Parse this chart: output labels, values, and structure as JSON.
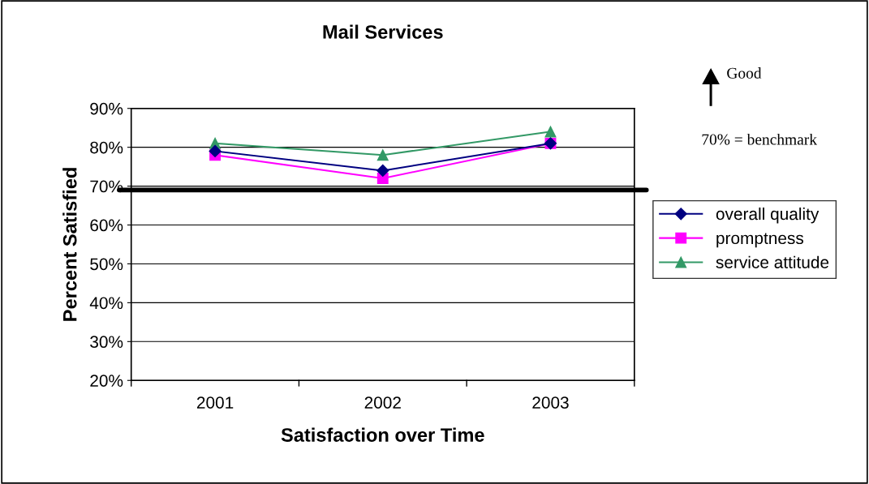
{
  "chart_data": {
    "type": "line",
    "title": "Mail Services",
    "xlabel": "Satisfaction over Time",
    "ylabel": "Percent Satisfied",
    "categories": [
      "2001",
      "2002",
      "2003"
    ],
    "series": [
      {
        "name": "overall quality",
        "color": "#000080",
        "marker": "diamond",
        "values": [
          79,
          74,
          81
        ]
      },
      {
        "name": "promptness",
        "color": "#ff00ff",
        "marker": "square",
        "values": [
          78,
          72,
          81
        ]
      },
      {
        "name": "service attitude",
        "color": "#339966",
        "marker": "triangle",
        "values": [
          81,
          78,
          84
        ]
      }
    ],
    "ylim": [
      20,
      90
    ],
    "yticks": [
      {
        "value": 20,
        "label": "20%"
      },
      {
        "value": 30,
        "label": "30%"
      },
      {
        "value": 40,
        "label": "40%"
      },
      {
        "value": 50,
        "label": "50%"
      },
      {
        "value": 60,
        "label": "60%"
      },
      {
        "value": 70,
        "label": "70%"
      },
      {
        "value": 80,
        "label": "80%"
      },
      {
        "value": 90,
        "label": "90%"
      }
    ],
    "grid": "y",
    "legend": "right",
    "ref_lines": [
      {
        "axis": "y",
        "value": 69,
        "color": "#000000"
      }
    ],
    "annotations": [
      "Good",
      "70% = benchmark"
    ]
  }
}
